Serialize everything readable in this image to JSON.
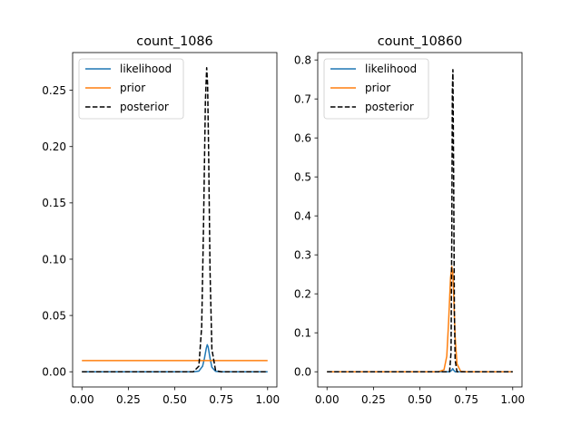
{
  "chart_data": [
    {
      "type": "line",
      "title": "count_1086",
      "xlabel": "",
      "ylabel": "",
      "xlim": [
        -0.05,
        1.05
      ],
      "ylim": [
        -0.0135,
        0.2835
      ],
      "xticks": [
        0.0,
        0.25,
        0.5,
        0.75,
        1.0
      ],
      "xtick_labels": [
        "0.00",
        "0.25",
        "0.50",
        "0.75",
        "1.00"
      ],
      "yticks": [
        0.0,
        0.05,
        0.1,
        0.15,
        0.2,
        0.25
      ],
      "ytick_labels": [
        "0.00",
        "0.05",
        "0.10",
        "0.15",
        "0.20",
        "0.25"
      ],
      "grid": false,
      "legend_position": "top-left",
      "series": [
        {
          "name": "likelihood",
          "color": "#1f77b4",
          "dash": "solid",
          "x": [
            0.0,
            0.6,
            0.63,
            0.65,
            0.66,
            0.67,
            0.675,
            0.68,
            0.69,
            0.7,
            0.72,
            0.75,
            1.0
          ],
          "y": [
            0.0,
            0.0,
            0.0006,
            0.005,
            0.012,
            0.021,
            0.024,
            0.022,
            0.012,
            0.004,
            0.0004,
            0.0,
            0.0
          ]
        },
        {
          "name": "prior",
          "color": "#ff7f0e",
          "dash": "solid",
          "x": [
            0.0,
            1.0
          ],
          "y": [
            0.0099,
            0.0099
          ]
        },
        {
          "name": "posterior",
          "color": "#000000",
          "dash": "dashed",
          "x": [
            0.0,
            0.6,
            0.63,
            0.645,
            0.655,
            0.665,
            0.672,
            0.677,
            0.682,
            0.69,
            0.7,
            0.72,
            0.75,
            1.0
          ],
          "y": [
            0.0,
            0.0,
            0.005,
            0.04,
            0.13,
            0.24,
            0.27,
            0.255,
            0.2,
            0.09,
            0.02,
            0.001,
            0.0,
            0.0
          ]
        }
      ]
    },
    {
      "type": "line",
      "title": "count_10860",
      "xlabel": "",
      "ylabel": "",
      "xlim": [
        -0.05,
        1.05
      ],
      "ylim": [
        -0.039,
        0.819
      ],
      "xticks": [
        0.0,
        0.25,
        0.5,
        0.75,
        1.0
      ],
      "xtick_labels": [
        "0.00",
        "0.25",
        "0.50",
        "0.75",
        "1.00"
      ],
      "yticks": [
        0.0,
        0.1,
        0.2,
        0.3,
        0.4,
        0.5,
        0.6,
        0.7,
        0.8
      ],
      "ytick_labels": [
        "0.0",
        "0.1",
        "0.2",
        "0.3",
        "0.4",
        "0.5",
        "0.6",
        "0.7",
        "0.8"
      ],
      "grid": false,
      "legend_position": "top-left",
      "series": [
        {
          "name": "likelihood",
          "color": "#1f77b4",
          "dash": "solid",
          "x": [
            0.0,
            0.66,
            0.672,
            0.677,
            0.682,
            0.69,
            1.0
          ],
          "y": [
            0.0,
            0.0,
            0.004,
            0.008,
            0.004,
            0.0,
            0.0
          ]
        },
        {
          "name": "prior",
          "color": "#ff7f0e",
          "dash": "solid",
          "x": [
            0.0,
            0.6,
            0.63,
            0.645,
            0.655,
            0.665,
            0.672,
            0.677,
            0.682,
            0.69,
            0.7,
            0.72,
            0.75,
            1.0
          ],
          "y": [
            0.0,
            0.0,
            0.005,
            0.04,
            0.13,
            0.24,
            0.27,
            0.255,
            0.2,
            0.09,
            0.02,
            0.001,
            0.0,
            0.0
          ]
        },
        {
          "name": "posterior",
          "color": "#000000",
          "dash": "dashed",
          "x": [
            0.0,
            0.66,
            0.668,
            0.672,
            0.675,
            0.678,
            0.682,
            0.686,
            0.69,
            0.7,
            1.0
          ],
          "y": [
            0.0,
            0.0,
            0.05,
            0.35,
            0.72,
            0.775,
            0.5,
            0.15,
            0.03,
            0.0,
            0.0
          ]
        }
      ]
    }
  ]
}
